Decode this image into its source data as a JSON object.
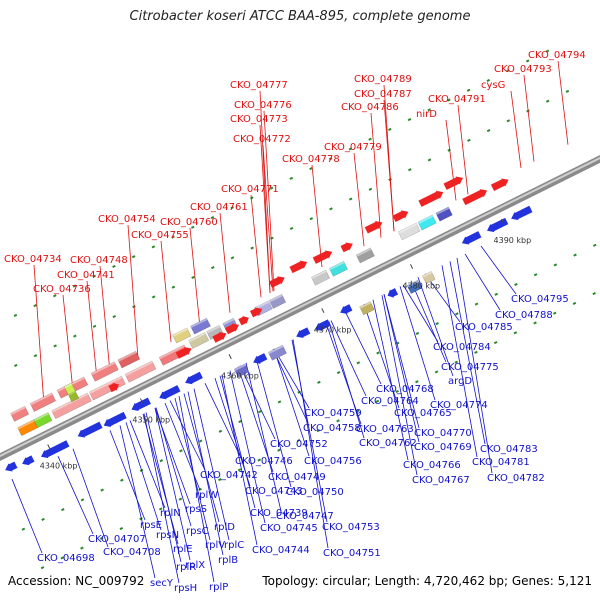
{
  "title": "Citrobacter koseri ATCC BAA-895, complete genome",
  "footer": {
    "accession": "Accession: NC_009792",
    "summary": "Topology: circular; Length: 4,720,462 bp; Genes: 5,121"
  },
  "colors": {
    "upper_labels": "#dd1111",
    "lower_labels": "#1111cc",
    "forward_genes": "#ee1111",
    "reverse_genes": "#1133dd",
    "backbone": "#999999"
  },
  "ticks": [
    "4340 kbp",
    "4350 kbp",
    "4360 kbp",
    "4370 kbp",
    "4380 kbp",
    "4390 kbp"
  ],
  "upper_labels": [
    "CKO_04794",
    "CKO_04793",
    "cysG",
    "CKO_04789",
    "CKO_04787",
    "CKO_04786",
    "CKO_04791",
    "nirD",
    "CKO_04777",
    "CKO_04776",
    "CKO_04773",
    "CKO_04772",
    "CKO_04778",
    "CKO_04779",
    "CKO_04771",
    "CKO_04761",
    "CKO_04754",
    "CKO_04760",
    "CKO_04755",
    "CKO_04748",
    "CKO_04734",
    "CKO_04741",
    "CKO_04736"
  ],
  "lower_labels": [
    "CKO_04795",
    "CKO_04788",
    "CKO_04785",
    "CKO_04784",
    "CKO_04775",
    "argD",
    "CKO_04774",
    "CKO_04768",
    "CKO_04764",
    "CKO_04765",
    "CKO_04759",
    "CKO_04763",
    "CKO_04758",
    "CKO_04762",
    "CKO_04770",
    "CKO_04769",
    "CKO_04752",
    "CKO_04783",
    "CKO_04781",
    "CKO_04782",
    "CKO_04756",
    "CKO_04766",
    "CKO_04767",
    "CKO_04746",
    "CKO_04749",
    "CKO_04742",
    "CKO_04743",
    "CKO_04750",
    "rplW",
    "rpsS",
    "CKO_04739",
    "CKO_04747",
    "rplN",
    "rpsE",
    "rpsN",
    "rpsC",
    "rplD",
    "CKO_04745",
    "CKO_04753",
    "CKO_04707",
    "CKO_04708",
    "rplE",
    "rplR",
    "rplV",
    "rplC",
    "rplX",
    "rplB",
    "CKO_04744",
    "CKO_04751",
    "CKO_04698",
    "secY",
    "rpsH",
    "rplP"
  ]
}
